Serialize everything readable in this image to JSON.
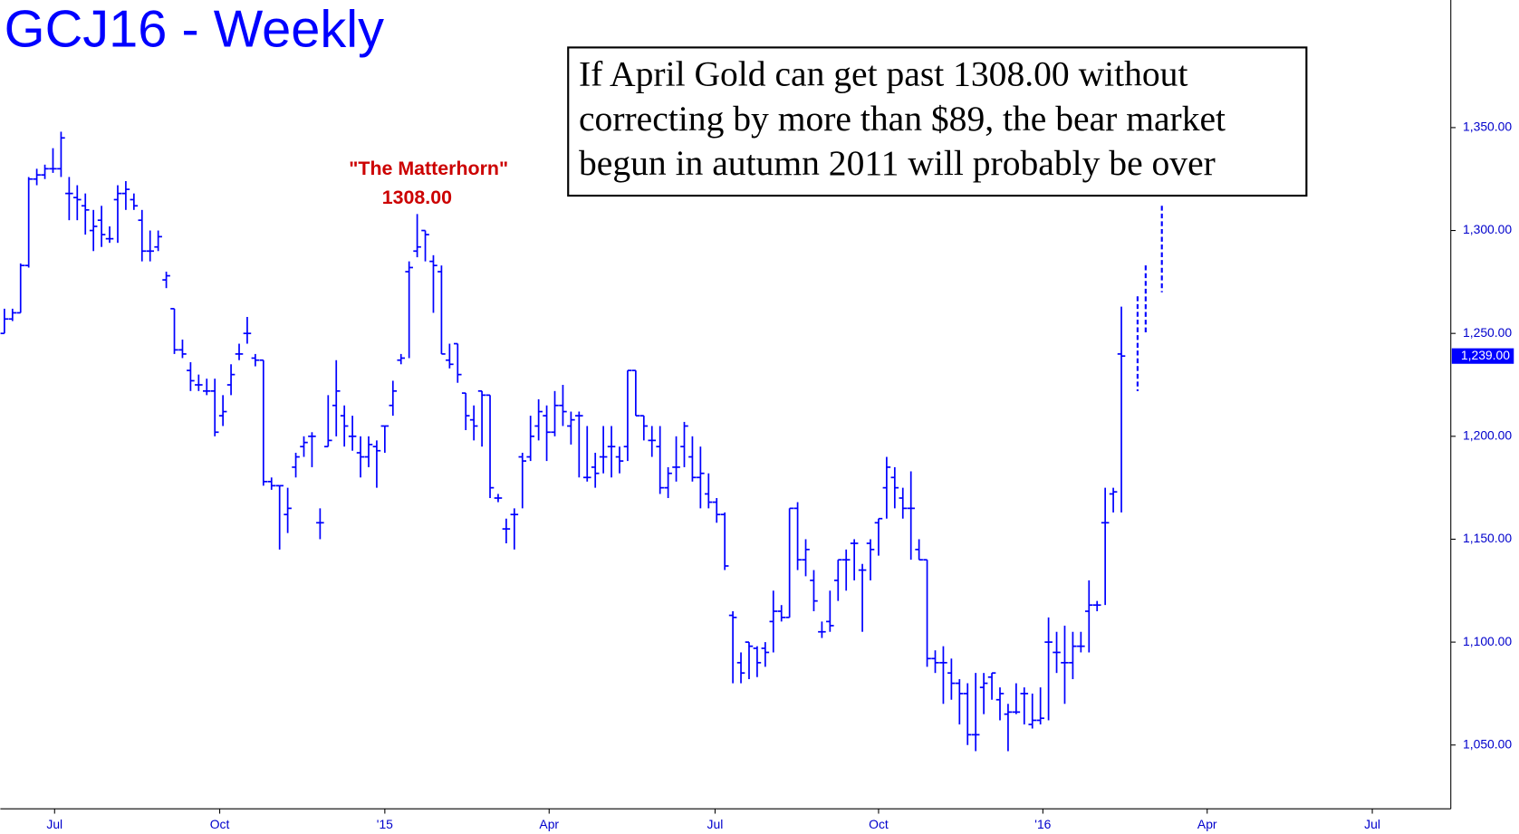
{
  "chart_data": {
    "type": "ohlc",
    "title": "GCJ16 - Weekly",
    "annotation_box": [
      "If April Gold can get past 1308.00 without",
      "correcting by more than $89, the bear market",
      "begun in autumn 2011 will probably be over"
    ],
    "peak_label": "\"The Matterhorn\"",
    "peak_value_label": "1308.00",
    "color": "#0000ff",
    "last_price": {
      "value": 1239,
      "label": "1,239.00"
    },
    "ylim": [
      1019,
      1412
    ],
    "yticks": [
      {
        "value": 1050,
        "label": "1,050.00"
      },
      {
        "value": 1100,
        "label": "1,100.00"
      },
      {
        "value": 1150,
        "label": "1,150.00"
      },
      {
        "value": 1200,
        "label": "1,200.00"
      },
      {
        "value": 1250,
        "label": "1,250.00"
      },
      {
        "value": 1300,
        "label": "1,300.00"
      },
      {
        "value": 1350,
        "label": "1,350.00"
      }
    ],
    "xlim": [
      -0.5,
      178.7
    ],
    "xticks": [
      {
        "value": 6.2,
        "label": "Jul"
      },
      {
        "value": 26.6,
        "label": "Oct"
      },
      {
        "value": 47,
        "label": "'15"
      },
      {
        "value": 67.3,
        "label": "Apr"
      },
      {
        "value": 87.8,
        "label": "Jul"
      },
      {
        "value": 108,
        "label": "Oct"
      },
      {
        "value": 128.3,
        "label": "'16"
      },
      {
        "value": 148.6,
        "label": "Apr"
      },
      {
        "value": 169,
        "label": "Jul"
      }
    ],
    "bars": [
      {
        "o": 1250,
        "h": 1262,
        "l": 1250,
        "c": 1257
      },
      {
        "o": 1257,
        "h": 1262,
        "l": 1256,
        "c": 1260
      },
      {
        "o": 1260,
        "h": 1284,
        "l": 1260,
        "c": 1283
      },
      {
        "o": 1283,
        "h": 1326,
        "l": 1282,
        "c": 1325
      },
      {
        "o": 1325,
        "h": 1330,
        "l": 1322,
        "c": 1327
      },
      {
        "o": 1327,
        "h": 1332,
        "l": 1325,
        "c": 1330
      },
      {
        "o": 1330,
        "h": 1340,
        "l": 1328,
        "c": 1330
      },
      {
        "o": 1330,
        "h": 1348,
        "l": 1326,
        "c": 1345
      },
      {
        "o": 1318,
        "h": 1326,
        "l": 1305,
        "c": 1318
      },
      {
        "o": 1316,
        "h": 1322,
        "l": 1305,
        "c": 1315
      },
      {
        "o": 1312,
        "h": 1318,
        "l": 1298,
        "c": 1310
      },
      {
        "o": 1300,
        "h": 1310,
        "l": 1290,
        "c": 1302
      },
      {
        "o": 1305,
        "h": 1312,
        "l": 1292,
        "c": 1298
      },
      {
        "o": 1296,
        "h": 1302,
        "l": 1294,
        "c": 1296
      },
      {
        "o": 1315,
        "h": 1322,
        "l": 1294,
        "c": 1318
      },
      {
        "o": 1318,
        "h": 1324,
        "l": 1310,
        "c": 1320
      },
      {
        "o": 1315,
        "h": 1318,
        "l": 1310,
        "c": 1312
      },
      {
        "o": 1305,
        "h": 1310,
        "l": 1285,
        "c": 1290
      },
      {
        "o": 1290,
        "h": 1300,
        "l": 1285,
        "c": 1290
      },
      {
        "o": 1292,
        "h": 1300,
        "l": 1290,
        "c": 1297
      },
      {
        "o": 1276,
        "h": 1280,
        "l": 1272,
        "c": 1278
      },
      {
        "o": 1262,
        "h": 1262,
        "l": 1240,
        "c": 1242
      },
      {
        "o": 1242,
        "h": 1247,
        "l": 1238,
        "c": 1240
      },
      {
        "o": 1232,
        "h": 1236,
        "l": 1222,
        "c": 1227
      },
      {
        "o": 1225,
        "h": 1230,
        "l": 1222,
        "c": 1225
      },
      {
        "o": 1222,
        "h": 1228,
        "l": 1220,
        "c": 1222
      },
      {
        "o": 1222,
        "h": 1228,
        "l": 1200,
        "c": 1202
      },
      {
        "o": 1210,
        "h": 1220,
        "l": 1205,
        "c": 1212
      },
      {
        "o": 1225,
        "h": 1235,
        "l": 1220,
        "c": 1230
      },
      {
        "o": 1240,
        "h": 1245,
        "l": 1237,
        "c": 1240
      },
      {
        "o": 1250,
        "h": 1258,
        "l": 1245,
        "c": 1250
      },
      {
        "o": 1238,
        "h": 1240,
        "l": 1234,
        "c": 1237
      },
      {
        "o": 1237,
        "h": 1237,
        "l": 1176,
        "c": 1178
      },
      {
        "o": 1178,
        "h": 1180,
        "l": 1174,
        "c": 1176
      },
      {
        "o": 1176,
        "h": 1176,
        "l": 1145,
        "c": 1176
      },
      {
        "o": 1162,
        "h": 1175,
        "l": 1153,
        "c": 1165
      },
      {
        "o": 1185,
        "h": 1192,
        "l": 1180,
        "c": 1190
      },
      {
        "o": 1195,
        "h": 1200,
        "l": 1190,
        "c": 1197
      },
      {
        "o": 1200,
        "h": 1202,
        "l": 1185,
        "c": 1200
      },
      {
        "o": 1158,
        "h": 1165,
        "l": 1150,
        "c": 1158
      },
      {
        "o": 1195,
        "h": 1220,
        "l": 1195,
        "c": 1198
      },
      {
        "o": 1215,
        "h": 1237,
        "l": 1200,
        "c": 1222
      },
      {
        "o": 1210,
        "h": 1215,
        "l": 1195,
        "c": 1205
      },
      {
        "o": 1200,
        "h": 1210,
        "l": 1193,
        "c": 1200
      },
      {
        "o": 1192,
        "h": 1200,
        "l": 1180,
        "c": 1190
      },
      {
        "o": 1190,
        "h": 1200,
        "l": 1185,
        "c": 1196
      },
      {
        "o": 1195,
        "h": 1198,
        "l": 1175,
        "c": 1193
      },
      {
        "o": 1205,
        "h": 1205,
        "l": 1192,
        "c": 1205
      },
      {
        "o": 1215,
        "h": 1227,
        "l": 1210,
        "c": 1222
      },
      {
        "o": 1237,
        "h": 1240,
        "l": 1235,
        "c": 1238
      },
      {
        "o": 1280,
        "h": 1285,
        "l": 1238,
        "c": 1282
      },
      {
        "o": 1290,
        "h": 1308,
        "l": 1287,
        "c": 1292
      },
      {
        "o": 1300,
        "h": 1300,
        "l": 1285,
        "c": 1298
      },
      {
        "o": 1285,
        "h": 1288,
        "l": 1260,
        "c": 1283
      },
      {
        "o": 1280,
        "h": 1283,
        "l": 1240,
        "c": 1240
      },
      {
        "o": 1237,
        "h": 1245,
        "l": 1233,
        "c": 1235
      },
      {
        "o": 1245,
        "h": 1245,
        "l": 1226,
        "c": 1230
      },
      {
        "o": 1221,
        "h": 1221,
        "l": 1203,
        "c": 1210
      },
      {
        "o": 1208,
        "h": 1215,
        "l": 1198,
        "c": 1205
      },
      {
        "o": 1222,
        "h": 1222,
        "l": 1195,
        "c": 1220
      },
      {
        "o": 1220,
        "h": 1220,
        "l": 1170,
        "c": 1175
      },
      {
        "o": 1170,
        "h": 1172,
        "l": 1168,
        "c": 1170
      },
      {
        "o": 1155,
        "h": 1160,
        "l": 1148,
        "c": 1155
      },
      {
        "o": 1162,
        "h": 1165,
        "l": 1145,
        "c": 1162
      },
      {
        "o": 1190,
        "h": 1192,
        "l": 1165,
        "c": 1188
      },
      {
        "o": 1190,
        "h": 1210,
        "l": 1188,
        "c": 1200
      },
      {
        "o": 1205,
        "h": 1218,
        "l": 1198,
        "c": 1212
      },
      {
        "o": 1210,
        "h": 1215,
        "l": 1188,
        "c": 1202
      },
      {
        "o": 1202,
        "h": 1222,
        "l": 1200,
        "c": 1215
      },
      {
        "o": 1215,
        "h": 1225,
        "l": 1205,
        "c": 1212
      },
      {
        "o": 1205,
        "h": 1212,
        "l": 1196,
        "c": 1208
      },
      {
        "o": 1210,
        "h": 1212,
        "l": 1180,
        "c": 1210
      },
      {
        "o": 1180,
        "h": 1205,
        "l": 1178,
        "c": 1180
      },
      {
        "o": 1185,
        "h": 1192,
        "l": 1175,
        "c": 1182
      },
      {
        "o": 1190,
        "h": 1205,
        "l": 1182,
        "c": 1190
      },
      {
        "o": 1195,
        "h": 1205,
        "l": 1180,
        "c": 1195
      },
      {
        "o": 1190,
        "h": 1195,
        "l": 1182,
        "c": 1188
      },
      {
        "o": 1195,
        "h": 1232,
        "l": 1188,
        "c": 1232
      },
      {
        "o": 1232,
        "h": 1232,
        "l": 1210,
        "c": 1210
      },
      {
        "o": 1210,
        "h": 1210,
        "l": 1198,
        "c": 1205
      },
      {
        "o": 1198,
        "h": 1205,
        "l": 1190,
        "c": 1198
      },
      {
        "o": 1195,
        "h": 1205,
        "l": 1172,
        "c": 1175
      },
      {
        "o": 1175,
        "h": 1185,
        "l": 1170,
        "c": 1182
      },
      {
        "o": 1185,
        "h": 1200,
        "l": 1178,
        "c": 1185
      },
      {
        "o": 1195,
        "h": 1207,
        "l": 1185,
        "c": 1205
      },
      {
        "o": 1190,
        "h": 1200,
        "l": 1178,
        "c": 1180
      },
      {
        "o": 1180,
        "h": 1195,
        "l": 1165,
        "c": 1182
      },
      {
        "o": 1172,
        "h": 1182,
        "l": 1165,
        "c": 1168
      },
      {
        "o": 1168,
        "h": 1170,
        "l": 1158,
        "c": 1162
      },
      {
        "o": 1162,
        "h": 1163,
        "l": 1135,
        "c": 1137
      },
      {
        "o": 1113,
        "h": 1115,
        "l": 1080,
        "c": 1112
      },
      {
        "o": 1090,
        "h": 1095,
        "l": 1080,
        "c": 1085
      },
      {
        "o": 1100,
        "h": 1100,
        "l": 1082,
        "c": 1098
      },
      {
        "o": 1097,
        "h": 1098,
        "l": 1083,
        "c": 1090
      },
      {
        "o": 1097,
        "h": 1100,
        "l": 1088,
        "c": 1095
      },
      {
        "o": 1110,
        "h": 1125,
        "l": 1095,
        "c": 1115
      },
      {
        "o": 1115,
        "h": 1118,
        "l": 1110,
        "c": 1112
      },
      {
        "o": 1112,
        "h": 1165,
        "l": 1112,
        "c": 1165
      },
      {
        "o": 1165,
        "h": 1168,
        "l": 1135,
        "c": 1140
      },
      {
        "o": 1140,
        "h": 1150,
        "l": 1132,
        "c": 1145
      },
      {
        "o": 1130,
        "h": 1135,
        "l": 1115,
        "c": 1120
      },
      {
        "o": 1105,
        "h": 1110,
        "l": 1102,
        "c": 1105
      },
      {
        "o": 1110,
        "h": 1125,
        "l": 1105,
        "c": 1108
      },
      {
        "o": 1130,
        "h": 1140,
        "l": 1120,
        "c": 1140
      },
      {
        "o": 1140,
        "h": 1145,
        "l": 1125,
        "c": 1140
      },
      {
        "o": 1148,
        "h": 1150,
        "l": 1130,
        "c": 1148
      },
      {
        "o": 1135,
        "h": 1138,
        "l": 1105,
        "c": 1135
      },
      {
        "o": 1148,
        "h": 1150,
        "l": 1130,
        "c": 1145
      },
      {
        "o": 1158,
        "h": 1160,
        "l": 1142,
        "c": 1160
      },
      {
        "o": 1175,
        "h": 1190,
        "l": 1160,
        "c": 1185
      },
      {
        "o": 1180,
        "h": 1185,
        "l": 1165,
        "c": 1175
      },
      {
        "o": 1170,
        "h": 1175,
        "l": 1160,
        "c": 1165
      },
      {
        "o": 1165,
        "h": 1183,
        "l": 1140,
        "c": 1165
      },
      {
        "o": 1145,
        "h": 1150,
        "l": 1140,
        "c": 1140
      },
      {
        "o": 1140,
        "h": 1140,
        "l": 1088,
        "c": 1092
      },
      {
        "o": 1092,
        "h": 1096,
        "l": 1085,
        "c": 1090
      },
      {
        "o": 1090,
        "h": 1098,
        "l": 1070,
        "c": 1090
      },
      {
        "o": 1085,
        "h": 1092,
        "l": 1072,
        "c": 1080
      },
      {
        "o": 1080,
        "h": 1082,
        "l": 1060,
        "c": 1075
      },
      {
        "o": 1075,
        "h": 1080,
        "l": 1050,
        "c": 1055
      },
      {
        "o": 1055,
        "h": 1085,
        "l": 1047,
        "c": 1055
      },
      {
        "o": 1078,
        "h": 1085,
        "l": 1065,
        "c": 1080
      },
      {
        "o": 1083,
        "h": 1085,
        "l": 1072,
        "c": 1085
      },
      {
        "o": 1072,
        "h": 1078,
        "l": 1062,
        "c": 1075
      },
      {
        "o": 1065,
        "h": 1070,
        "l": 1047,
        "c": 1066
      },
      {
        "o": 1066,
        "h": 1080,
        "l": 1065,
        "c": 1066
      },
      {
        "o": 1075,
        "h": 1078,
        "l": 1060,
        "c": 1075
      },
      {
        "o": 1060,
        "h": 1075,
        "l": 1058,
        "c": 1062
      },
      {
        "o": 1062,
        "h": 1078,
        "l": 1060,
        "c": 1063
      },
      {
        "o": 1100,
        "h": 1112,
        "l": 1062,
        "c": 1100
      },
      {
        "o": 1095,
        "h": 1105,
        "l": 1085,
        "c": 1095
      },
      {
        "o": 1090,
        "h": 1108,
        "l": 1070,
        "c": 1090
      },
      {
        "o": 1090,
        "h": 1105,
        "l": 1082,
        "c": 1098
      },
      {
        "o": 1098,
        "h": 1105,
        "l": 1095,
        "c": 1098
      },
      {
        "o": 1115,
        "h": 1130,
        "l": 1095,
        "c": 1118
      },
      {
        "o": 1118,
        "h": 1120,
        "l": 1115,
        "c": 1118
      },
      {
        "o": 1158,
        "h": 1175,
        "l": 1118,
        "c": 1158
      },
      {
        "o": 1172,
        "h": 1175,
        "l": 1163,
        "c": 1173
      },
      {
        "o": 1240,
        "h": 1263,
        "l": 1163,
        "c": 1239
      }
    ],
    "projected": {
      "x": [
        140,
        141,
        143
      ],
      "high": [
        1268,
        1283,
        1312
      ],
      "low": [
        1222,
        1250,
        1270
      ]
    }
  }
}
